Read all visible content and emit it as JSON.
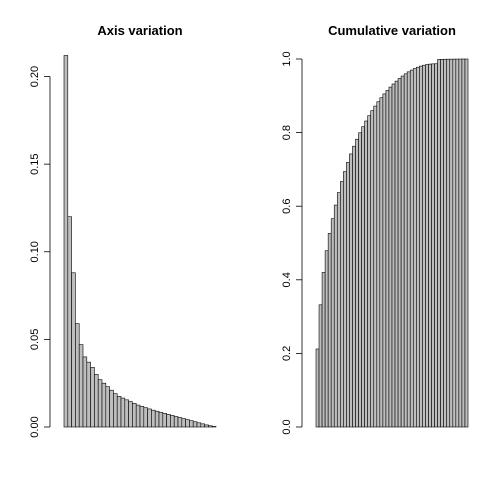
{
  "chart_data": [
    {
      "type": "bar",
      "title": "Axis variation",
      "xlabel": "",
      "ylabel": "",
      "ylim": [
        0,
        0.21
      ],
      "yticks": [
        0.0,
        0.05,
        0.1,
        0.15,
        0.2
      ],
      "ytick_labels": [
        "0.00",
        "0.05",
        "0.10",
        "0.15",
        "0.20"
      ],
      "grid": false,
      "values": [
        0.212,
        0.12,
        0.088,
        0.059,
        0.047,
        0.04,
        0.037,
        0.034,
        0.03,
        0.027,
        0.025,
        0.023,
        0.021,
        0.019,
        0.0175,
        0.0165,
        0.0155,
        0.0145,
        0.0135,
        0.0125,
        0.0118,
        0.011,
        0.0103,
        0.0096,
        0.009,
        0.0084,
        0.0078,
        0.0072,
        0.0066,
        0.006,
        0.0054,
        0.0048,
        0.0042,
        0.0036,
        0.003,
        0.0024,
        0.0018,
        0.0012,
        0.0007,
        0.0003
      ]
    },
    {
      "type": "bar",
      "title": "Cumulative variation",
      "xlabel": "",
      "ylabel": "",
      "ylim": [
        0,
        1.0
      ],
      "yticks": [
        0.0,
        0.2,
        0.4,
        0.6,
        0.8,
        1.0
      ],
      "ytick_labels": [
        "0.0",
        "0.2",
        "0.4",
        "0.6",
        "0.8",
        "1.0"
      ],
      "grid": false,
      "values": [
        0.212,
        0.332,
        0.42,
        0.479,
        0.526,
        0.566,
        0.603,
        0.637,
        0.667,
        0.694,
        0.719,
        0.742,
        0.763,
        0.782,
        0.7995,
        0.816,
        0.8315,
        0.846,
        0.8595,
        0.872,
        0.8838,
        0.8948,
        0.9051,
        0.9147,
        0.9237,
        0.9321,
        0.9399,
        0.9471,
        0.9537,
        0.9597,
        0.9651,
        0.9699,
        0.9741,
        0.9777,
        0.9807,
        0.9831,
        0.9849,
        0.9861,
        0.9868,
        0.9871,
        0.999,
        0.9992,
        0.9994,
        0.9995,
        0.9996,
        0.9997,
        0.9998,
        0.9999,
        1.0,
        1.0
      ]
    }
  ]
}
